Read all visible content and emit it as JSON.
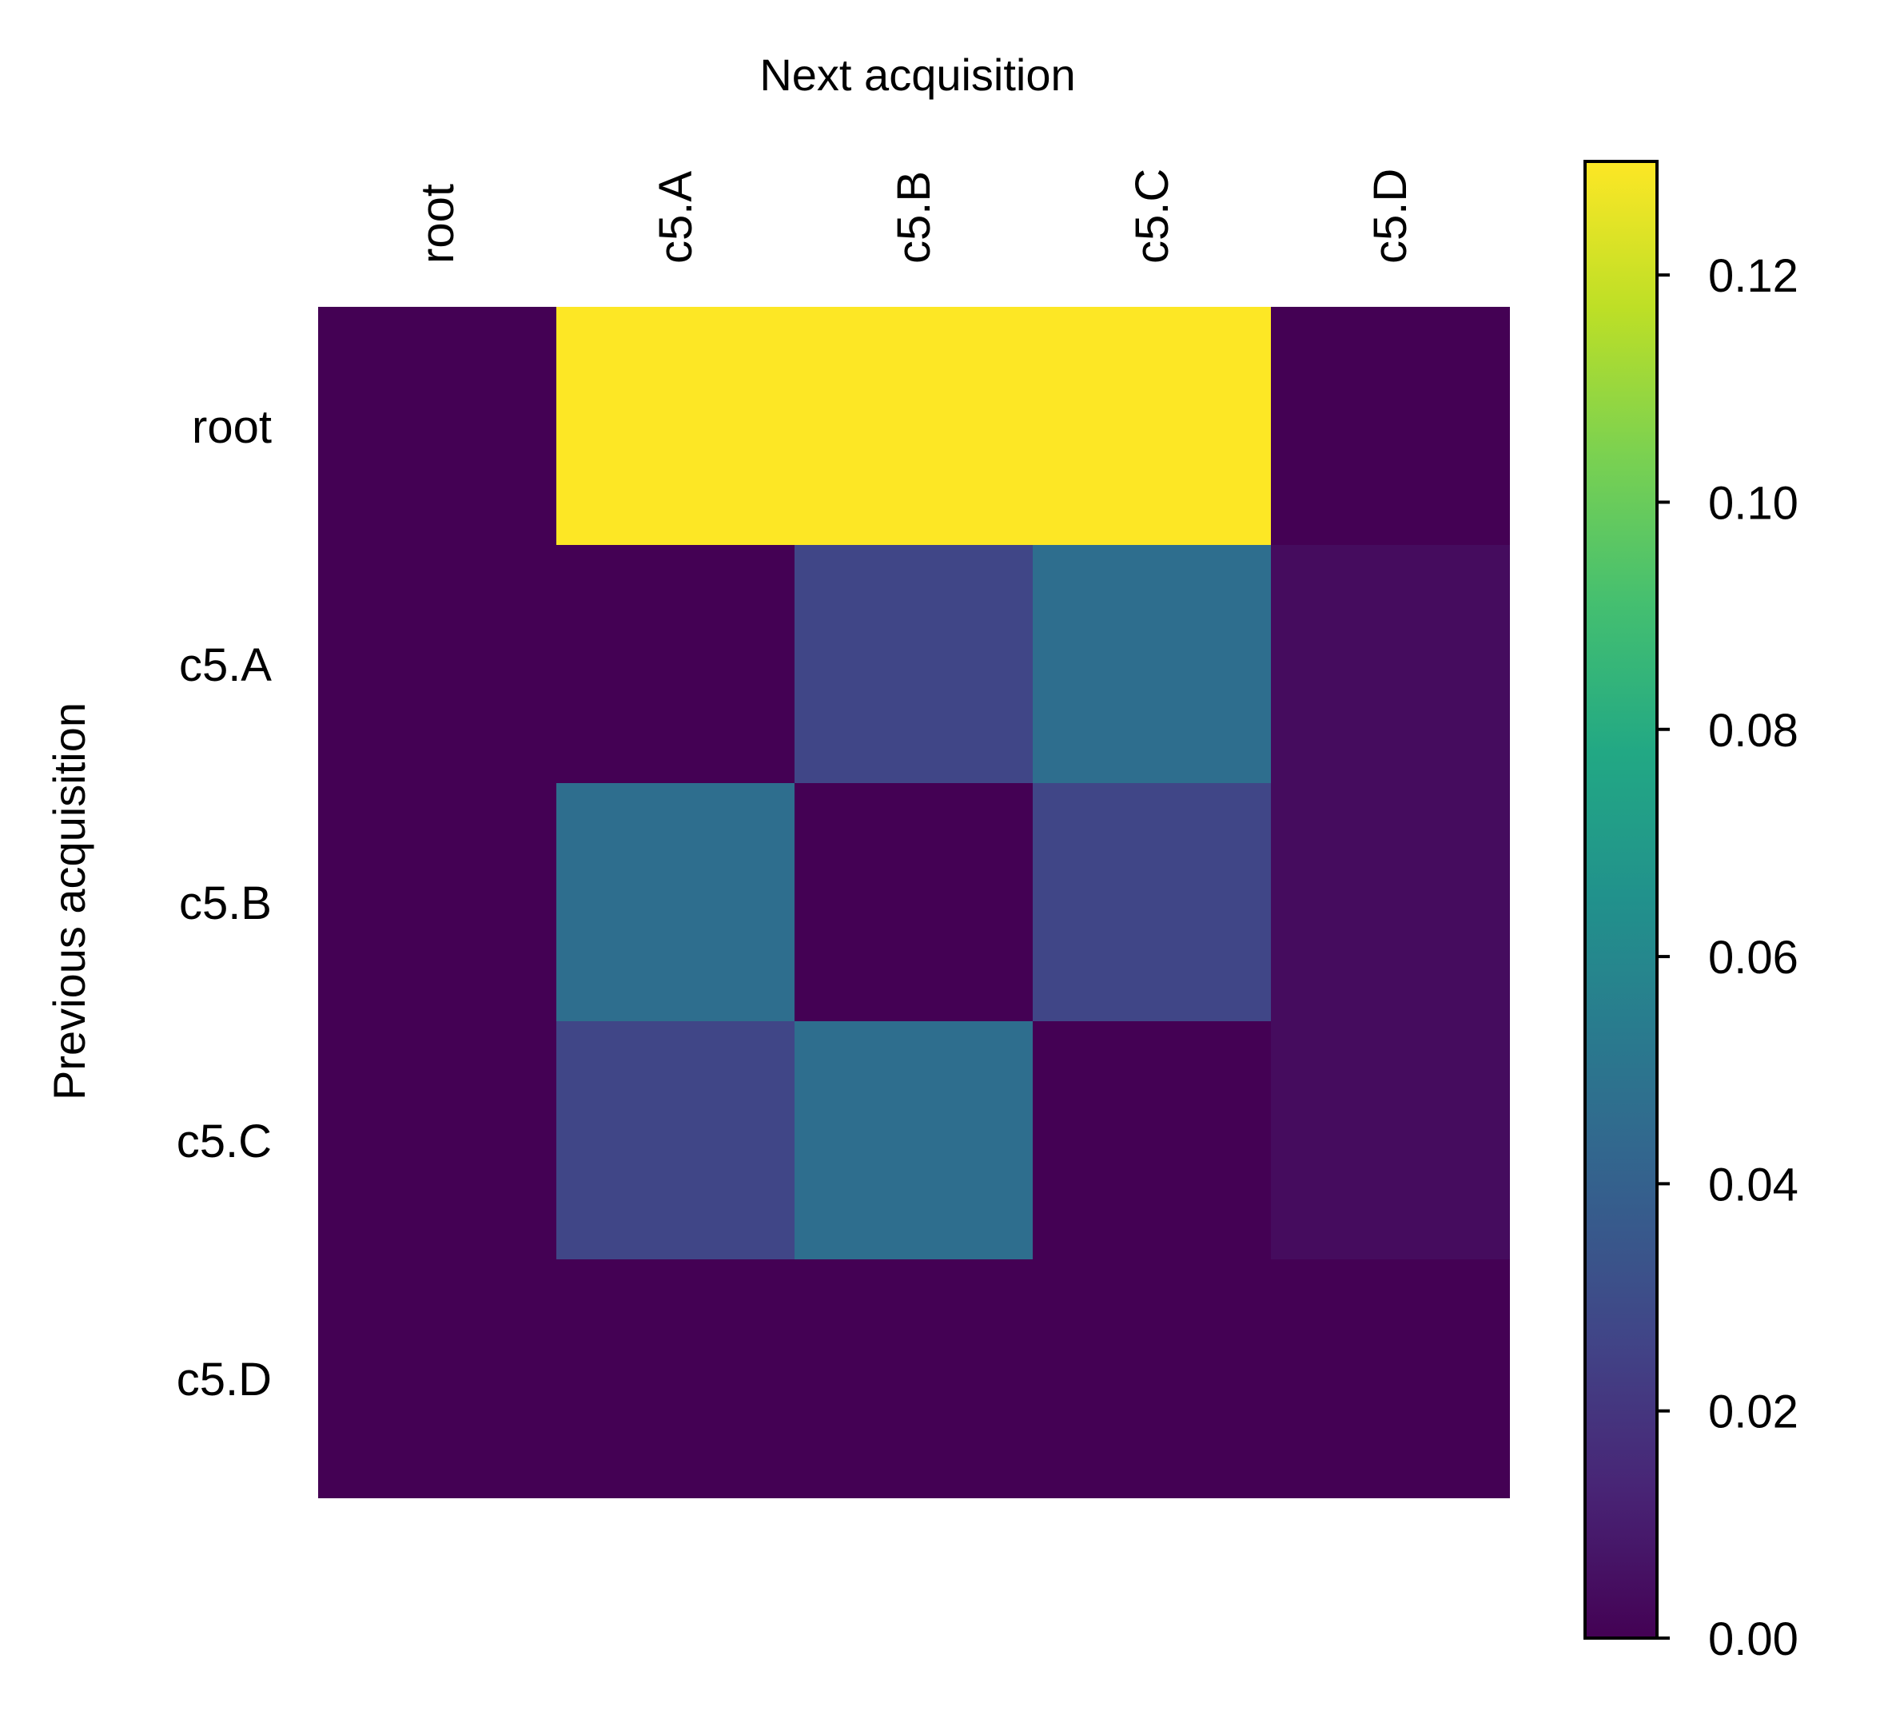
{
  "chart_data": {
    "type": "heatmap",
    "xlabel": "Next acquisition",
    "ylabel": "Previous acquisition",
    "x_categories": [
      "root",
      "c5.A",
      "c5.B",
      "c5.C",
      "c5.D"
    ],
    "y_categories": [
      "root",
      "c5.A",
      "c5.B",
      "c5.C",
      "c5.D"
    ],
    "values": [
      [
        0.0,
        0.13,
        0.13,
        0.13,
        0.0
      ],
      [
        0.0,
        0.0,
        0.027,
        0.047,
        0.004
      ],
      [
        0.0,
        0.047,
        0.0,
        0.027,
        0.004
      ],
      [
        0.0,
        0.027,
        0.047,
        0.0,
        0.004
      ],
      [
        0.0,
        0.0,
        0.0,
        0.0,
        0.0
      ]
    ],
    "colormap": "viridis",
    "colorbar": {
      "range": [
        0.0,
        0.13
      ],
      "ticks": [
        0.0,
        0.02,
        0.04,
        0.06,
        0.08,
        0.1,
        0.12
      ],
      "tick_labels": [
        "0.00",
        "0.02",
        "0.04",
        "0.06",
        "0.08",
        "0.10",
        "0.12"
      ]
    },
    "x_axis_position": "top",
    "grid": false
  }
}
